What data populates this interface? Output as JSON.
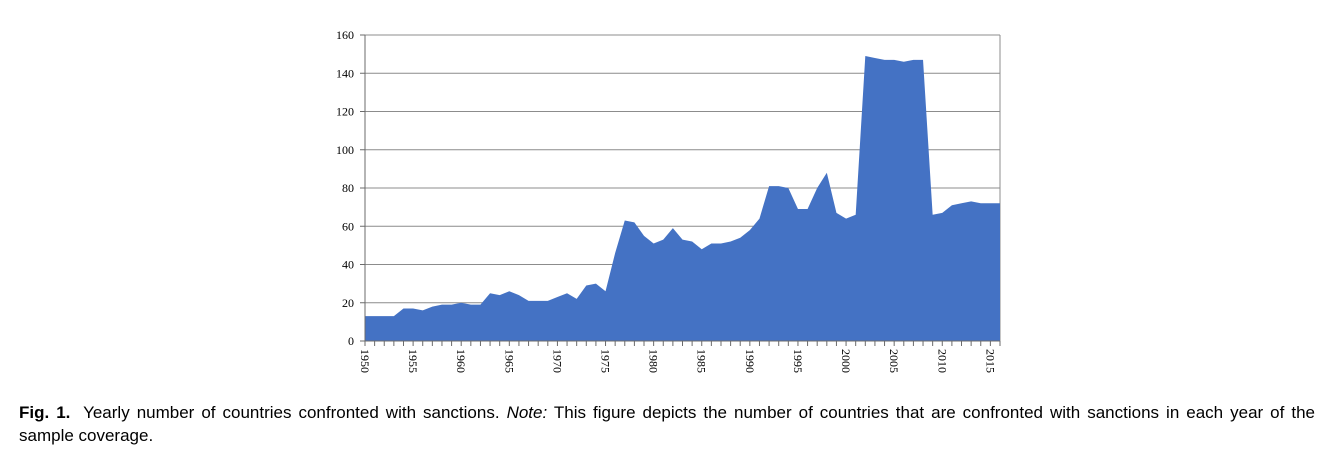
{
  "chart_data": {
    "type": "area",
    "x": [
      1950,
      1951,
      1952,
      1953,
      1954,
      1955,
      1956,
      1957,
      1958,
      1959,
      1960,
      1961,
      1962,
      1963,
      1964,
      1965,
      1966,
      1967,
      1968,
      1969,
      1970,
      1971,
      1972,
      1973,
      1974,
      1975,
      1976,
      1977,
      1978,
      1979,
      1980,
      1981,
      1982,
      1983,
      1984,
      1985,
      1986,
      1987,
      1988,
      1989,
      1990,
      1991,
      1992,
      1993,
      1994,
      1995,
      1996,
      1997,
      1998,
      1999,
      2000,
      2001,
      2002,
      2003,
      2004,
      2005,
      2006,
      2007,
      2008,
      2009,
      2010,
      2011,
      2012,
      2013,
      2014,
      2015,
      2016
    ],
    "series": [
      {
        "values": [
          13,
          13,
          13,
          13,
          17,
          17,
          16,
          18,
          19,
          19,
          20,
          19,
          19,
          25,
          24,
          26,
          24,
          21,
          21,
          21,
          23,
          25,
          22,
          29,
          30,
          26,
          46,
          63,
          62,
          55,
          51,
          53,
          59,
          53,
          52,
          48,
          51,
          51,
          52,
          54,
          58,
          64,
          81,
          81,
          80,
          69,
          69,
          80,
          88,
          67,
          64,
          66,
          149,
          148,
          147,
          147,
          146,
          147,
          147,
          66,
          67,
          71,
          72,
          73,
          72,
          72,
          72
        ],
        "color": "#4472C4"
      }
    ],
    "ylim": [
      0,
      160
    ],
    "yticks": [
      "0",
      "20",
      "40",
      "60",
      "80",
      "100",
      "120",
      "140",
      "160"
    ],
    "xtick_labels": [
      "1950",
      "1955",
      "1960",
      "1965",
      "1970",
      "1975",
      "1980",
      "1985",
      "1990",
      "1995",
      "2000",
      "2005",
      "2010",
      "2015"
    ],
    "grid": true
  },
  "caption": {
    "label": "Fig. 1.",
    "title": "Yearly number of countries confronted with sanctions.",
    "note_label": "Note:",
    "note_text": "This figure depicts the number of countries that are confronted with sanctions in each year of the sample coverage."
  }
}
